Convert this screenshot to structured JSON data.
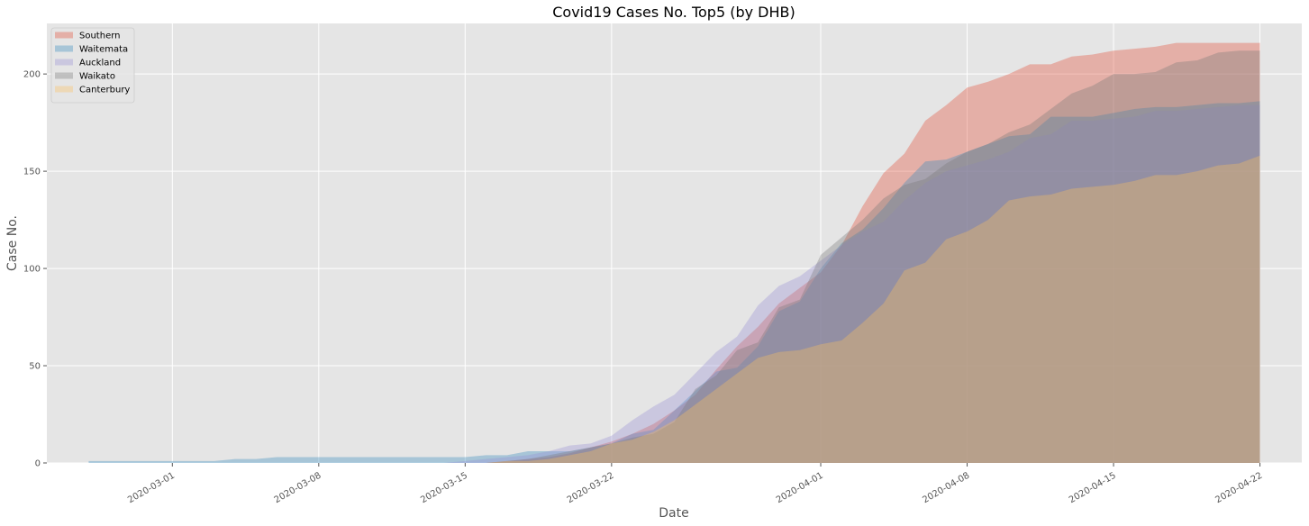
{
  "chart_data": {
    "type": "area",
    "title": "Covid19 Cases No. Top5 (by DHB)",
    "xlabel": "Date",
    "ylabel": "Case No.",
    "x_start": "2020-02-26",
    "x_end": "2020-04-22",
    "xlim": [
      "2020-02-24",
      "2020-04-24"
    ],
    "ylim": [
      0,
      226
    ],
    "x_ticks": [
      "2020-03-01",
      "2020-03-08",
      "2020-03-15",
      "2020-03-22",
      "2020-04-01",
      "2020-04-08",
      "2020-04-15",
      "2020-04-22"
    ],
    "y_ticks": [
      0,
      50,
      100,
      150,
      200
    ],
    "grid": true,
    "legend_position": "top-left",
    "series": [
      {
        "name": "Southern",
        "color": "#E24A33",
        "values": [
          0,
          0,
          0,
          0,
          0,
          0,
          0,
          0,
          0,
          0,
          0,
          0,
          0,
          0,
          0,
          0,
          0,
          0,
          0,
          0,
          1,
          2,
          3,
          5,
          8,
          11,
          15,
          20,
          27,
          35,
          48,
          60,
          70,
          82,
          90,
          98,
          112,
          132,
          149,
          159,
          176,
          184,
          193,
          196,
          200,
          205,
          205,
          209,
          210,
          212,
          213,
          214,
          216,
          216,
          216,
          216,
          216
        ]
      },
      {
        "name": "Waitemata",
        "color": "#348ABD",
        "values": [
          1,
          1,
          1,
          1,
          1,
          1,
          1,
          2,
          2,
          3,
          3,
          3,
          3,
          3,
          3,
          3,
          3,
          3,
          3,
          4,
          4,
          6,
          6,
          6,
          8,
          10,
          15,
          17,
          27,
          37,
          47,
          49,
          60,
          78,
          83,
          100,
          113,
          120,
          131,
          144,
          155,
          156,
          160,
          164,
          168,
          169,
          178,
          178,
          178,
          180,
          182,
          183,
          183,
          184,
          185,
          185,
          186
        ]
      },
      {
        "name": "Auckland",
        "color": "#988ED5",
        "values": [
          0,
          0,
          0,
          0,
          0,
          0,
          0,
          0,
          0,
          0,
          0,
          0,
          0,
          0,
          0,
          0,
          0,
          0,
          1,
          2,
          3,
          4,
          6,
          9,
          10,
          14,
          22,
          29,
          35,
          46,
          57,
          65,
          81,
          91,
          96,
          104,
          112,
          119,
          124,
          135,
          144,
          150,
          153,
          156,
          160,
          167,
          169,
          176,
          176,
          177,
          178,
          181,
          181,
          182,
          183,
          184,
          184
        ]
      },
      {
        "name": "Waikato",
        "color": "#777777",
        "values": [
          0,
          0,
          0,
          0,
          0,
          0,
          0,
          0,
          0,
          0,
          0,
          0,
          0,
          0,
          0,
          0,
          0,
          0,
          0,
          0,
          1,
          2,
          4,
          6,
          8,
          10,
          13,
          15,
          21,
          38,
          45,
          58,
          62,
          80,
          84,
          107,
          116,
          125,
          136,
          143,
          146,
          154,
          160,
          164,
          170,
          174,
          182,
          190,
          194,
          200,
          200,
          201,
          206,
          207,
          211,
          212,
          212
        ]
      },
      {
        "name": "Canterbury",
        "color": "#FBC15E",
        "values": [
          0,
          0,
          0,
          0,
          0,
          0,
          0,
          0,
          0,
          0,
          0,
          0,
          0,
          0,
          0,
          0,
          0,
          0,
          0,
          0,
          1,
          1,
          2,
          4,
          6,
          10,
          12,
          16,
          22,
          30,
          38,
          46,
          54,
          57,
          58,
          61,
          63,
          72,
          82,
          99,
          103,
          115,
          119,
          125,
          135,
          137,
          138,
          141,
          142,
          143,
          145,
          148,
          148,
          150,
          153,
          154,
          158
        ]
      }
    ]
  }
}
